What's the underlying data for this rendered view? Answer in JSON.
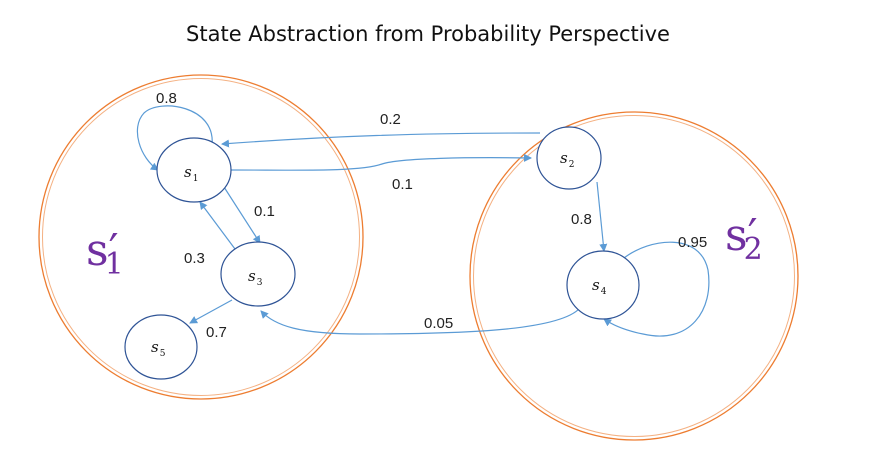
{
  "title": "State Abstraction from Probability Perspective",
  "colors": {
    "group_circle": "#ed7d31",
    "state_circle": "#2f5496",
    "edge": "#5b9bd5",
    "abstract_label": "#7030a0"
  },
  "abstract_states": [
    {
      "id": "g1",
      "base": "s",
      "prime": "′",
      "sub": "1"
    },
    {
      "id": "g2",
      "base": "s",
      "prime": "′",
      "sub": "2"
    }
  ],
  "states": [
    {
      "id": "s1",
      "base": "s",
      "sub": "1"
    },
    {
      "id": "s2",
      "base": "s",
      "sub": "2"
    },
    {
      "id": "s3",
      "base": "s",
      "sub": "3"
    },
    {
      "id": "s4",
      "base": "s",
      "sub": "4"
    },
    {
      "id": "s5",
      "base": "s",
      "sub": "5"
    }
  ],
  "transitions": [
    {
      "from": "s1",
      "to": "s1",
      "prob": "0.8"
    },
    {
      "from": "s2",
      "to": "s1",
      "prob": "0.2"
    },
    {
      "from": "s1",
      "to": "s2",
      "prob": "0.1"
    },
    {
      "from": "s1",
      "to": "s3",
      "prob": "0.1"
    },
    {
      "from": "s3",
      "to": "s1",
      "prob": "0.3"
    },
    {
      "from": "s3",
      "to": "s5",
      "prob": "0.7"
    },
    {
      "from": "s2",
      "to": "s4",
      "prob": "0.8"
    },
    {
      "from": "s4",
      "to": "s4",
      "prob": "0.95"
    },
    {
      "from": "s4",
      "to": "s3",
      "prob": "0.05"
    }
  ]
}
